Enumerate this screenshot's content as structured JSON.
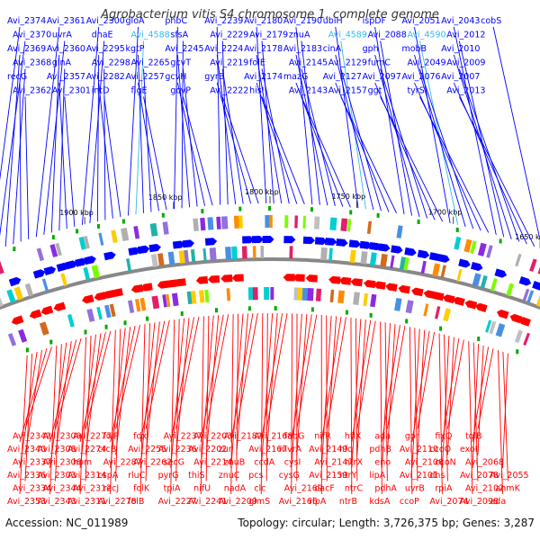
{
  "title": "Agrobacterium vitis S4 chromosome 1, complete genome",
  "footer": {
    "accession": "Accession: NC_011989",
    "summary": "Topology: circular; Length: 3,726,375 bp; Genes: 3,287"
  },
  "colors": {
    "forward": "#0000ff",
    "reverse": "#ff0000",
    "highlight": "#33bbee",
    "backbone": "#888888",
    "tick": "#00aa00"
  },
  "ticks": [
    "1900 kbp",
    "1850 kbp",
    "1800 kbp",
    "1750 kbp",
    "1700 kbp",
    "1650 kbp"
  ],
  "top_labels": [
    "Avi_2374",
    "Avi_2370",
    "Avi_2369",
    "Avi_2368",
    "recG",
    "Avi_2362",
    "Avi_2361",
    "uvrA",
    "Avi_2360",
    "glnA",
    "Avi_2357",
    "Avi_2301",
    "Avi_2300",
    "dnaE",
    "Avi_2295",
    "Avi_2298",
    "Avi_2282",
    "intD",
    "gloA",
    "Avi_4588",
    "kgtP",
    "Avi_2265",
    "Avi_2257",
    "flgE",
    "phbC",
    "sfsA",
    "Avi_2245",
    "gcvT",
    "gcvH",
    "gcvP",
    "Avi_2239",
    "Avi_2229",
    "Avi_2224",
    "Avi_2219",
    "gyrB",
    "Avi_2222",
    "Avi_2180",
    "Avi_2179",
    "Avi_2178",
    "folE",
    "Avi_2174",
    "hisI",
    "Avi_2190",
    "znuA",
    "Avi_2183",
    "Avi_2145",
    "mazG",
    "Avi_2143",
    "ubiH",
    "Avi_4589",
    "cinA",
    "Avi_2129",
    "Avi_2127",
    "Avi_2157",
    "ispDF",
    "Avi_2088",
    "gph",
    "fumC",
    "Avi_2097",
    "ggt",
    "Avi_2051",
    "Avi_4590",
    "mobB",
    "Avi_2049",
    "Avi_2076",
    "tyrS",
    "Avi_2043",
    "Avi_2012",
    "Avi_2010",
    "Avi_2009",
    "Avi_2007",
    "Avi_2013",
    "cobS"
  ],
  "bottom_labels": [
    "Avi_2353",
    "Avi_2334",
    "Avi_2336",
    "Avi_2337",
    "Avi_2340",
    "Avi_2342",
    "Avi_2343",
    "Avi_2344",
    "Avi_2303",
    "Avi_2306",
    "Avi_2308",
    "Avi_2309",
    "Avi_2311",
    "Avi_2312",
    "Avi_2314",
    "hom",
    "Avi_2274",
    "Avi_2277",
    "Avi_2278",
    "recJ",
    "cspA",
    "Avi_2287",
    "crcB",
    "folP",
    "folB",
    "folK",
    "rluC",
    "Avi_2262",
    "Avi_2255",
    "fdx",
    "Avi_2227",
    "tpiA",
    "pyrG",
    "secG",
    "Avi_2236",
    "Avi_2237",
    "Avi_2241",
    "nifU",
    "thiS",
    "Avi_2214",
    "Avi_2202",
    "Avi_2203",
    "Avi_2209",
    "nadA",
    "znuC",
    "znuB",
    "zur",
    "Avi_2182",
    "glmS",
    "clc",
    "pcs",
    "ccdA",
    "Avi_2167",
    "Avi_2168",
    "Avi_2166",
    "Avi_2169",
    "cysG",
    "cysI",
    "mvrA",
    "fabG",
    "rlpA",
    "dacF",
    "Avi_2159",
    "Avi_2147",
    "Avi_2149",
    "nifR",
    "ntrB",
    "ntrC",
    "ntrY",
    "ntrX",
    "hfq",
    "hflX",
    "kdsA",
    "pdhA",
    "lipA",
    "eno",
    "pdhB",
    "ada",
    "ccoP",
    "uvrB",
    "Avi_2101",
    "Avi_2106",
    "Avi_2110",
    "gor",
    "Avi_2074",
    "rpiA",
    "dhs",
    "ccoN",
    "ccoO",
    "fixQ",
    "Avi_2098",
    "Avi_2102",
    "Avi_2078",
    "Avi_2068",
    "exoI",
    "tolB",
    "ada",
    "anmK",
    "Avi_2055"
  ]
}
